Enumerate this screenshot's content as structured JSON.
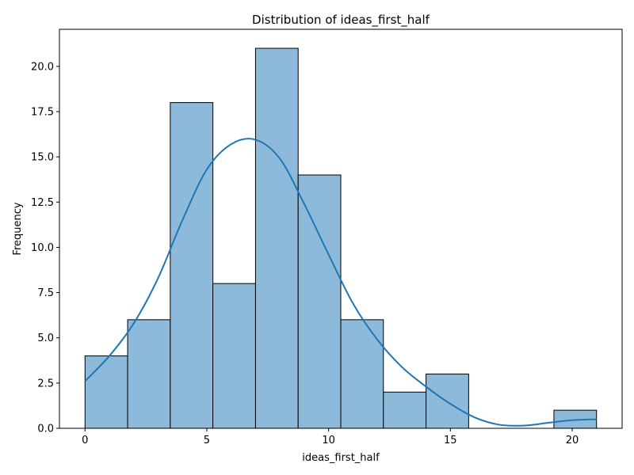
{
  "chart_data": {
    "type": "bar",
    "title": "Distribution of ideas_first_half",
    "xlabel": "ideas_first_half",
    "ylabel": "Frequency",
    "xlim": [
      -1.05,
      22.05
    ],
    "ylim": [
      0,
      22.05
    ],
    "x_ticks": [
      0,
      5,
      10,
      15,
      20
    ],
    "y_ticks": [
      "0.0",
      "2.5",
      "5.0",
      "7.5",
      "10.0",
      "12.5",
      "15.0",
      "17.5",
      "20.0"
    ],
    "bins": [
      {
        "start": 0.0,
        "end": 1.75,
        "count": 4
      },
      {
        "start": 1.75,
        "end": 3.5,
        "count": 6
      },
      {
        "start": 3.5,
        "end": 5.25,
        "count": 18
      },
      {
        "start": 5.25,
        "end": 7.0,
        "count": 8
      },
      {
        "start": 7.0,
        "end": 8.75,
        "count": 21
      },
      {
        "start": 8.75,
        "end": 10.5,
        "count": 14
      },
      {
        "start": 10.5,
        "end": 12.25,
        "count": 6
      },
      {
        "start": 12.25,
        "end": 14.0,
        "count": 2
      },
      {
        "start": 14.0,
        "end": 15.75,
        "count": 3
      },
      {
        "start": 15.75,
        "end": 17.5,
        "count": 0
      },
      {
        "start": 17.5,
        "end": 19.25,
        "count": 0
      },
      {
        "start": 19.25,
        "end": 21.0,
        "count": 1
      }
    ],
    "kde": {
      "x": [
        0,
        1,
        2,
        3,
        4,
        5,
        6,
        7,
        8,
        9,
        10,
        11,
        12,
        13,
        14,
        15,
        16,
        17,
        18,
        19,
        20,
        21
      ],
      "y": [
        2.6,
        4.0,
        5.8,
        8.3,
        11.5,
        14.3,
        15.7,
        15.95,
        14.9,
        12.4,
        9.6,
        6.9,
        4.9,
        3.4,
        2.3,
        1.35,
        0.6,
        0.2,
        0.15,
        0.3,
        0.45,
        0.5
      ]
    },
    "colors": {
      "bar_fill": "#8db9da",
      "bar_edge": "#000000",
      "kde_line": "#1f77b4"
    },
    "grid": false,
    "legend": "none"
  }
}
